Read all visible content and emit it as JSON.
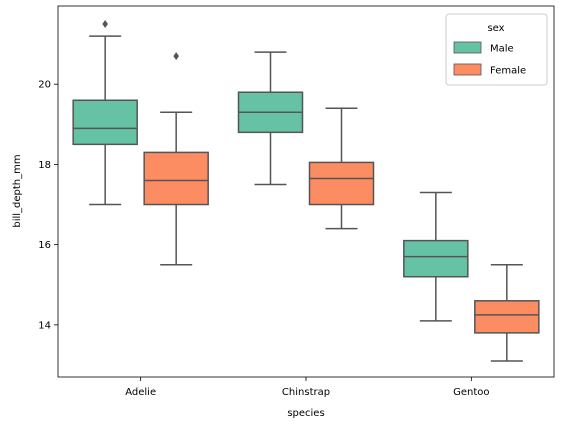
{
  "chart_data": {
    "type": "box",
    "xlabel": "species",
    "ylabel": "bill_depth_mm",
    "categories": [
      "Adelie",
      "Chinstrap",
      "Gentoo"
    ],
    "ylim": [
      12.7,
      21.95
    ],
    "yticks": [
      14,
      16,
      18,
      20
    ],
    "legend": {
      "title": "sex",
      "placement": "top-right"
    },
    "series": [
      {
        "name": "Male",
        "color": "#66c2a5",
        "boxes": [
          {
            "whisker_low": 17.0,
            "q1": 18.5,
            "median": 18.9,
            "q3": 19.6,
            "whisker_high": 21.2,
            "outliers": [
              21.5
            ]
          },
          {
            "whisker_low": 17.5,
            "q1": 18.8,
            "median": 19.3,
            "q3": 19.8,
            "whisker_high": 20.8,
            "outliers": []
          },
          {
            "whisker_low": 14.1,
            "q1": 15.2,
            "median": 15.7,
            "q3": 16.1,
            "whisker_high": 17.3,
            "outliers": []
          }
        ]
      },
      {
        "name": "Female",
        "color": "#fc8d62",
        "boxes": [
          {
            "whisker_low": 15.5,
            "q1": 17.0,
            "median": 17.6,
            "q3": 18.3,
            "whisker_high": 19.3,
            "outliers": [
              20.7
            ]
          },
          {
            "whisker_low": 16.4,
            "q1": 17.0,
            "median": 17.65,
            "q3": 18.05,
            "whisker_high": 19.4,
            "outliers": []
          },
          {
            "whisker_low": 13.1,
            "q1": 13.8,
            "median": 14.25,
            "q3": 14.6,
            "whisker_high": 15.5,
            "outliers": []
          }
        ]
      }
    ]
  }
}
